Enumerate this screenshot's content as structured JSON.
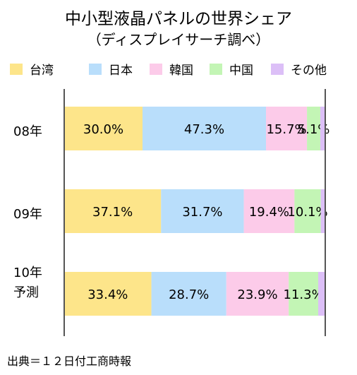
{
  "chart_data": {
    "type": "bar",
    "orientation": "horizontal",
    "stacked": true,
    "title": "中小型液晶パネルの世界シェア",
    "subtitle": "（ディスプレイサーチ調べ）",
    "categories": [
      {
        "lines": [
          "08年"
        ]
      },
      {
        "lines": [
          "09年"
        ]
      },
      {
        "lines": [
          "10年",
          "予測"
        ]
      }
    ],
    "series": [
      {
        "name": "台湾",
        "color": "#fde58a",
        "values": [
          30.0,
          37.1,
          33.4
        ],
        "labels": [
          "30.0%",
          "37.1%",
          "33.4%"
        ]
      },
      {
        "name": "日本",
        "color": "#b9defb",
        "values": [
          47.3,
          31.7,
          28.7
        ],
        "labels": [
          "47.3%",
          "31.7%",
          "28.7%"
        ]
      },
      {
        "name": "韓国",
        "color": "#fccbe9",
        "values": [
          15.7,
          19.4,
          23.9
        ],
        "labels": [
          "15.7%",
          "19.4%",
          "23.9%"
        ]
      },
      {
        "name": "中国",
        "color": "#c3f5b5",
        "values": [
          5.1,
          10.1,
          11.3
        ],
        "labels": [
          "5.1%",
          "10.1%",
          "11.3%"
        ]
      },
      {
        "name": "その他",
        "color": "#dcbff7",
        "values": [
          1.9,
          1.7,
          2.7
        ],
        "labels": [
          "",
          "",
          ""
        ]
      }
    ],
    "xlim": [
      0,
      100
    ],
    "legend_position": "top",
    "grid": false
  },
  "source": "出典＝１２日付工商時報"
}
